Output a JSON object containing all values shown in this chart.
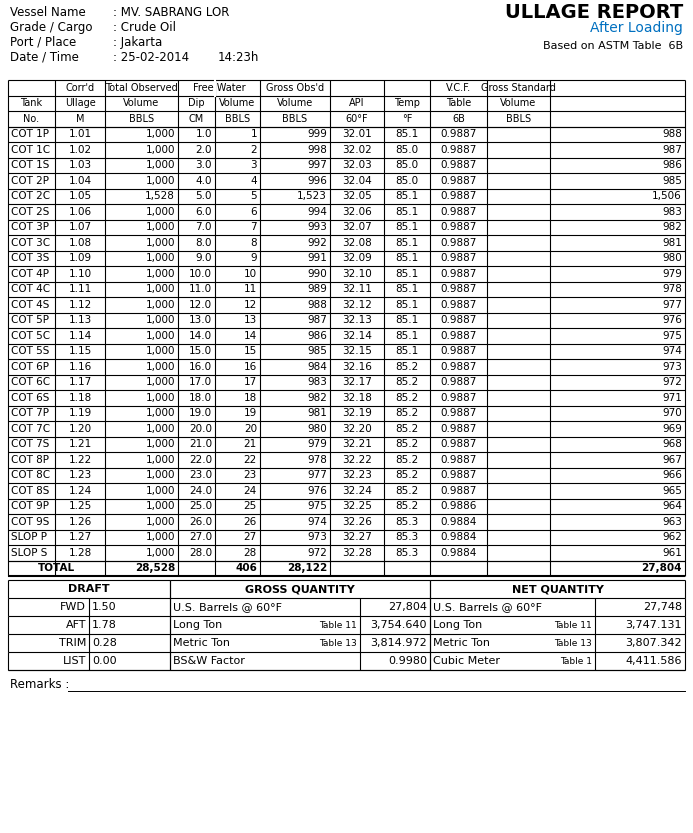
{
  "vessel_name": "MV. SABRANG LOR",
  "grade_cargo": "Crude Oil",
  "port_place": "Jakarta",
  "date": "25-02-2014",
  "time": "14:23h",
  "report_title": "ULLAGE REPORT",
  "subtitle": "After Loading",
  "based_on": "Based on ASTM Table  6B",
  "blue_color": "#0070C0",
  "tank_data": [
    [
      "COT 1P",
      "1.01",
      "1,000",
      "1.0",
      "1",
      "999",
      "32.01",
      "85.1",
      "0.9887",
      "988"
    ],
    [
      "COT 1C",
      "1.02",
      "1,000",
      "2.0",
      "2",
      "998",
      "32.02",
      "85.0",
      "0.9887",
      "987"
    ],
    [
      "COT 1S",
      "1.03",
      "1,000",
      "3.0",
      "3",
      "997",
      "32.03",
      "85.0",
      "0.9887",
      "986"
    ],
    [
      "COT 2P",
      "1.04",
      "1,000",
      "4.0",
      "4",
      "996",
      "32.04",
      "85.0",
      "0.9887",
      "985"
    ],
    [
      "COT 2C",
      "1.05",
      "1,528",
      "5.0",
      "5",
      "1,523",
      "32.05",
      "85.1",
      "0.9887",
      "1,506"
    ],
    [
      "COT 2S",
      "1.06",
      "1,000",
      "6.0",
      "6",
      "994",
      "32.06",
      "85.1",
      "0.9887",
      "983"
    ],
    [
      "COT 3P",
      "1.07",
      "1,000",
      "7.0",
      "7",
      "993",
      "32.07",
      "85.1",
      "0.9887",
      "982"
    ],
    [
      "COT 3C",
      "1.08",
      "1,000",
      "8.0",
      "8",
      "992",
      "32.08",
      "85.1",
      "0.9887",
      "981"
    ],
    [
      "COT 3S",
      "1.09",
      "1,000",
      "9.0",
      "9",
      "991",
      "32.09",
      "85.1",
      "0.9887",
      "980"
    ],
    [
      "COT 4P",
      "1.10",
      "1,000",
      "10.0",
      "10",
      "990",
      "32.10",
      "85.1",
      "0.9887",
      "979"
    ],
    [
      "COT 4C",
      "1.11",
      "1,000",
      "11.0",
      "11",
      "989",
      "32.11",
      "85.1",
      "0.9887",
      "978"
    ],
    [
      "COT 4S",
      "1.12",
      "1,000",
      "12.0",
      "12",
      "988",
      "32.12",
      "85.1",
      "0.9887",
      "977"
    ],
    [
      "COT 5P",
      "1.13",
      "1,000",
      "13.0",
      "13",
      "987",
      "32.13",
      "85.1",
      "0.9887",
      "976"
    ],
    [
      "COT 5C",
      "1.14",
      "1,000",
      "14.0",
      "14",
      "986",
      "32.14",
      "85.1",
      "0.9887",
      "975"
    ],
    [
      "COT 5S",
      "1.15",
      "1,000",
      "15.0",
      "15",
      "985",
      "32.15",
      "85.1",
      "0.9887",
      "974"
    ],
    [
      "COT 6P",
      "1.16",
      "1,000",
      "16.0",
      "16",
      "984",
      "32.16",
      "85.2",
      "0.9887",
      "973"
    ],
    [
      "COT 6C",
      "1.17",
      "1,000",
      "17.0",
      "17",
      "983",
      "32.17",
      "85.2",
      "0.9887",
      "972"
    ],
    [
      "COT 6S",
      "1.18",
      "1,000",
      "18.0",
      "18",
      "982",
      "32.18",
      "85.2",
      "0.9887",
      "971"
    ],
    [
      "COT 7P",
      "1.19",
      "1,000",
      "19.0",
      "19",
      "981",
      "32.19",
      "85.2",
      "0.9887",
      "970"
    ],
    [
      "COT 7C",
      "1.20",
      "1,000",
      "20.0",
      "20",
      "980",
      "32.20",
      "85.2",
      "0.9887",
      "969"
    ],
    [
      "COT 7S",
      "1.21",
      "1,000",
      "21.0",
      "21",
      "979",
      "32.21",
      "85.2",
      "0.9887",
      "968"
    ],
    [
      "COT 8P",
      "1.22",
      "1,000",
      "22.0",
      "22",
      "978",
      "32.22",
      "85.2",
      "0.9887",
      "967"
    ],
    [
      "COT 8C",
      "1.23",
      "1,000",
      "23.0",
      "23",
      "977",
      "32.23",
      "85.2",
      "0.9887",
      "966"
    ],
    [
      "COT 8S",
      "1.24",
      "1,000",
      "24.0",
      "24",
      "976",
      "32.24",
      "85.2",
      "0.9887",
      "965"
    ],
    [
      "COT 9P",
      "1.25",
      "1,000",
      "25.0",
      "25",
      "975",
      "32.25",
      "85.2",
      "0.9886",
      "964"
    ],
    [
      "COT 9S",
      "1.26",
      "1,000",
      "26.0",
      "26",
      "974",
      "32.26",
      "85.3",
      "0.9884",
      "963"
    ],
    [
      "SLOP P",
      "1.27",
      "1,000",
      "27.0",
      "27",
      "973",
      "32.27",
      "85.3",
      "0.9884",
      "962"
    ],
    [
      "SLOP S",
      "1.28",
      "1,000",
      "28.0",
      "28",
      "972",
      "32.28",
      "85.3",
      "0.9884",
      "961"
    ]
  ],
  "total_row": [
    "TOTAL",
    "",
    "28,528",
    "",
    "406",
    "28,122",
    "",
    "",
    "",
    "27,804"
  ],
  "draft_data": [
    [
      "FWD",
      "1.50"
    ],
    [
      "AFT",
      "1.78"
    ],
    [
      "TRIM",
      "0.28"
    ],
    [
      "LIST",
      "0.00"
    ]
  ],
  "gross_qty": [
    [
      "U.S. Barrels @ 60°F",
      "",
      "27,804"
    ],
    [
      "Long Ton",
      "Table 11",
      "3,754.640"
    ],
    [
      "Metric Ton",
      "Table 13",
      "3,814.972"
    ],
    [
      "BS&W Factor",
      "",
      "0.9980"
    ]
  ],
  "net_qty": [
    [
      "U.S. Barrels @ 60°F",
      "",
      "27,748"
    ],
    [
      "Long Ton",
      "Table 11",
      "3,747.131"
    ],
    [
      "Metric Ton",
      "Table 13",
      "3,807.342"
    ],
    [
      "Cubic Meter",
      "Table 1",
      "4,411.586"
    ]
  ]
}
